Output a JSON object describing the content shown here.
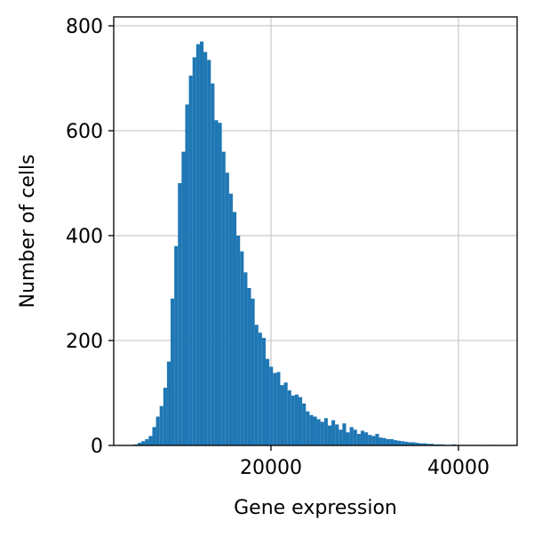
{
  "chart_data": {
    "type": "histogram",
    "xlabel": "Gene expression",
    "ylabel": "Number of cells",
    "color": "#1f77b4",
    "grid": true,
    "xlim": [
      3220,
      46260
    ],
    "xticks": [
      20000,
      40000
    ],
    "ylim": [
      0,
      817
    ],
    "yticks": [
      0,
      200,
      400,
      600,
      800
    ],
    "bins": [
      5000,
      5390,
      5780,
      6170,
      6560,
      6950,
      7340,
      7730,
      8120,
      8510,
      8900,
      9290,
      9680,
      10070,
      10460,
      10850,
      11240,
      11630,
      12020,
      12410,
      12800,
      13190,
      13580,
      13970,
      14360,
      14750,
      15140,
      15530,
      15920,
      16310,
      16700,
      17090,
      17480,
      17870,
      18260,
      18650,
      19040,
      19430,
      19820,
      20210,
      20600,
      20990,
      21380,
      21770,
      22160,
      22550,
      22940,
      23330,
      23720,
      24110,
      24500,
      24890,
      25280,
      25670,
      26060,
      26450,
      26840,
      27230,
      27620,
      28010,
      28400,
      28790,
      29180,
      29570,
      29960,
      30350,
      30740,
      31130,
      31520,
      31910,
      32300,
      32690,
      33080,
      33470,
      33860,
      34250,
      34640,
      35030,
      35420,
      35810,
      36200,
      36590,
      36980,
      37370,
      37760,
      38150,
      38540,
      38930,
      39320,
      39710,
      40100,
      40490,
      40880,
      41270,
      41660,
      42050,
      42440,
      42830,
      43220,
      43610,
      44000
    ],
    "values": [
      1,
      2,
      5,
      8,
      12,
      18,
      35,
      55,
      75,
      110,
      160,
      280,
      380,
      500,
      560,
      650,
      705,
      740,
      765,
      770,
      750,
      735,
      690,
      620,
      615,
      560,
      520,
      480,
      445,
      400,
      370,
      330,
      300,
      280,
      230,
      215,
      205,
      165,
      150,
      138,
      140,
      115,
      120,
      105,
      95,
      97,
      92,
      80,
      65,
      58,
      55,
      50,
      45,
      52,
      38,
      48,
      40,
      30,
      42,
      25,
      35,
      30,
      22,
      28,
      25,
      20,
      18,
      22,
      15,
      14,
      12,
      12,
      10,
      9,
      8,
      7,
      6,
      6,
      5,
      4,
      4,
      3,
      3,
      2,
      2,
      2,
      1,
      1,
      2,
      1,
      1,
      0,
      0,
      1,
      0,
      0,
      0,
      0,
      0,
      1
    ]
  }
}
